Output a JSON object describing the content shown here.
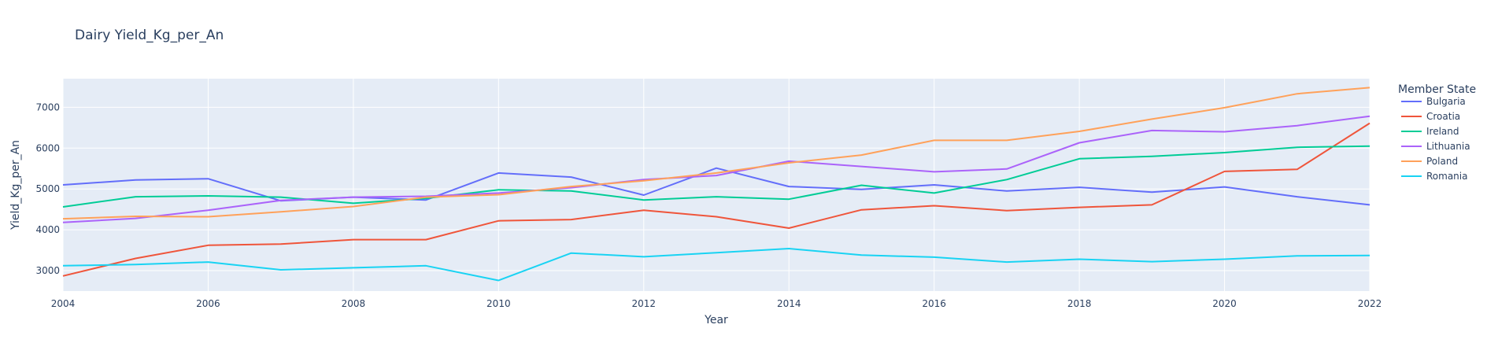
{
  "chart_data": {
    "type": "line",
    "title": "Dairy Yield_Kg_per_An",
    "xlabel": "Year",
    "ylabel": "Yield_Kg_per_An",
    "xlim": [
      2004,
      2022
    ],
    "ylim": [
      2500,
      7700
    ],
    "x_ticks": [
      2004,
      2006,
      2008,
      2010,
      2012,
      2014,
      2016,
      2018,
      2020,
      2022
    ],
    "y_ticks": [
      3000,
      4000,
      5000,
      6000,
      7000
    ],
    "grid": true,
    "legend_title": "Member State",
    "legend_position": "right",
    "x": [
      2004,
      2005,
      2006,
      2007,
      2008,
      2009,
      2010,
      2011,
      2012,
      2013,
      2014,
      2015,
      2016,
      2017,
      2018,
      2019,
      2020,
      2021,
      2022
    ],
    "series": [
      {
        "name": "Bulgaria",
        "color": "#636efa",
        "values": [
          5100,
          5220,
          5250,
          4710,
          4800,
          4730,
          5390,
          5290,
          4850,
          5510,
          5060,
          4990,
          5100,
          4950,
          5040,
          4920,
          5050,
          4810,
          4610
        ]
      },
      {
        "name": "Croatia",
        "color": "#ef553b",
        "values": [
          2870,
          3300,
          3620,
          3650,
          3760,
          3760,
          4220,
          4250,
          4480,
          4320,
          4040,
          4490,
          4590,
          4470,
          4550,
          4610,
          5430,
          5480,
          6610
        ]
      },
      {
        "name": "Ireland",
        "color": "#00cc96",
        "values": [
          4560,
          4810,
          4830,
          4800,
          4650,
          4770,
          4980,
          4950,
          4730,
          4810,
          4750,
          5090,
          4900,
          5230,
          5740,
          5800,
          5890,
          6020,
          6050
        ]
      },
      {
        "name": "Lithuania",
        "color": "#ab63fa",
        "values": [
          4180,
          4280,
          4480,
          4720,
          4800,
          4820,
          4900,
          5030,
          5230,
          5330,
          5680,
          5550,
          5420,
          5490,
          6130,
          6430,
          6400,
          6550,
          6780
        ]
      },
      {
        "name": "Poland",
        "color": "#ffa15a",
        "values": [
          4270,
          4330,
          4320,
          4440,
          4570,
          4800,
          4860,
          5060,
          5200,
          5390,
          5640,
          5830,
          6190,
          6190,
          6410,
          6710,
          6990,
          7330,
          7480
        ]
      },
      {
        "name": "Romania",
        "color": "#19d3f3",
        "values": [
          3120,
          3150,
          3210,
          3020,
          3070,
          3120,
          2760,
          3430,
          3340,
          3440,
          3540,
          3380,
          3330,
          3210,
          3280,
          3220,
          3280,
          3360,
          3370
        ]
      }
    ]
  }
}
